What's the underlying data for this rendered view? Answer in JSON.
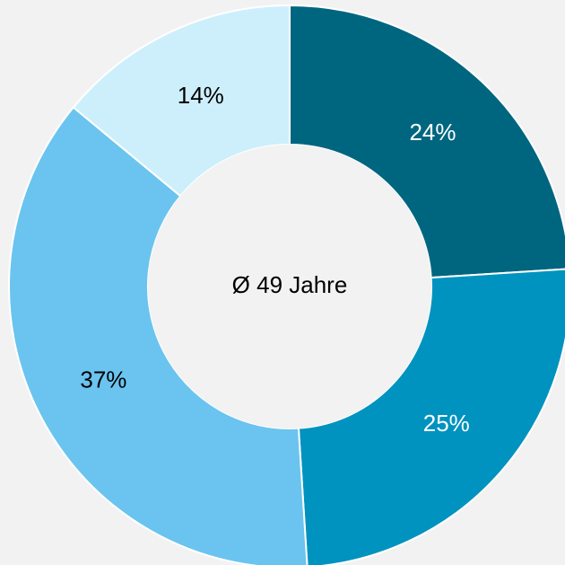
{
  "chart_data": {
    "type": "donut",
    "categories": [
      null,
      null,
      null,
      null
    ],
    "values": [
      24,
      25,
      37,
      14
    ],
    "value_labels": [
      "24%",
      "25%",
      "37%",
      "14%"
    ],
    "colors": [
      "#006680",
      "#0093bf",
      "#6ac4ef",
      "#cdeffc"
    ],
    "label_colors": [
      "#ffffff",
      "#ffffff",
      "#000000",
      "#000000"
    ],
    "center_label": "Ø 49 Jahre"
  }
}
